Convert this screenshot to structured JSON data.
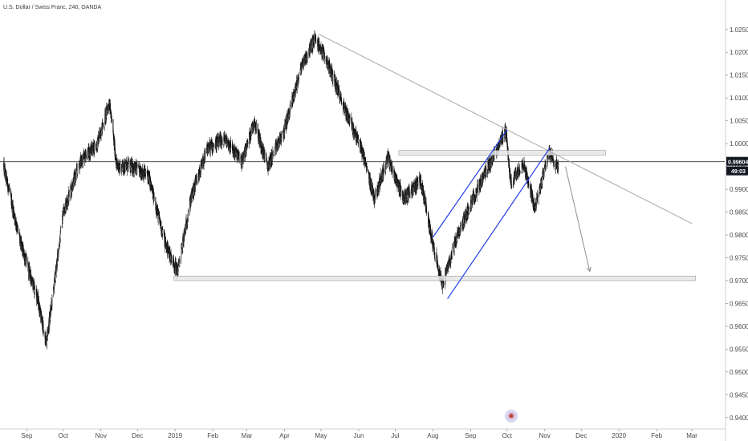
{
  "header": {
    "symbol_title": "U.S. Dollar / Swiss Franc, 240, OANDA"
  },
  "price_axis": {
    "labels": [
      "1.02500",
      "1.02000",
      "1.01500",
      "1.01000",
      "1.00500",
      "1.00000",
      "0.99500",
      "0.99000",
      "0.98500",
      "0.98000",
      "0.97500",
      "0.97000",
      "0.96500",
      "0.96000",
      "0.95500",
      "0.95000",
      "0.94500",
      "0.94000"
    ],
    "current_price": "0.99604",
    "countdown": "49:03",
    "current_tag_color": "#131722",
    "countdown_tag_color": "#131722"
  },
  "time_axis": {
    "labels": [
      "Sep",
      "Oct",
      "Nov",
      "Dec",
      "2019",
      "Feb",
      "Mar",
      "Apr",
      "May",
      "Jun",
      "Jul",
      "Aug",
      "Sep",
      "Oct",
      "Nov",
      "Dec",
      "2020",
      "Feb",
      "Mar"
    ]
  },
  "chart_data": {
    "type": "line",
    "series_style": "candlestick",
    "x": [
      "2018-08-13",
      "2018-08-27",
      "2018-09-10",
      "2018-09-17",
      "2018-09-24",
      "2018-10-01",
      "2018-10-15",
      "2018-10-29",
      "2018-11-08",
      "2018-11-14",
      "2018-11-26",
      "2018-12-10",
      "2018-12-24",
      "2019-01-03",
      "2019-01-14",
      "2019-01-28",
      "2019-02-11",
      "2019-02-25",
      "2019-03-07",
      "2019-03-18",
      "2019-04-01",
      "2019-04-15",
      "2019-04-26",
      "2019-05-06",
      "2019-05-20",
      "2019-06-03",
      "2019-06-14",
      "2019-06-25",
      "2019-07-08",
      "2019-07-22",
      "2019-08-01",
      "2019-08-09",
      "2019-08-20",
      "2019-09-03",
      "2019-09-16",
      "2019-09-30",
      "2019-10-04",
      "2019-10-14",
      "2019-10-24",
      "2019-11-04",
      "2019-11-12"
    ],
    "y": [
      0.995,
      0.978,
      0.966,
      0.956,
      0.97,
      0.985,
      0.996,
      1.0,
      1.009,
      0.995,
      0.995,
      0.993,
      0.978,
      0.972,
      0.988,
      0.999,
      1.001,
      0.996,
      1.005,
      0.995,
      1.003,
      1.017,
      1.023,
      1.018,
      1.008,
      0.999,
      0.988,
      0.997,
      0.988,
      0.992,
      0.978,
      0.969,
      0.979,
      0.988,
      0.995,
      1.003,
      0.991,
      0.996,
      0.986,
      0.998,
      0.995
    ],
    "ylim": [
      0.9375,
      1.029
    ],
    "xlim": [
      "2018-08-10",
      "2020-03-28"
    ],
    "grid": false,
    "annotations": {
      "trendline": {
        "from": {
          "x": "2019-04-29",
          "y": 1.024
        },
        "to": {
          "x": "2020-03-01",
          "y": 0.9825
        },
        "color": "#a8a8a8"
      },
      "channel_lower": {
        "from": {
          "x": "2019-08-13",
          "y": 0.966
        },
        "to": {
          "x": "2019-11-05",
          "y": 0.999
        },
        "color": "#1e3ee8"
      },
      "channel_upper": {
        "from": {
          "x": "2019-08-01",
          "y": 0.9795
        },
        "to": {
          "x": "2019-10-01",
          "y": 1.003
        },
        "color": "#1e3ee8"
      },
      "resistance_zone": {
        "x_from": "2019-07-04",
        "x_to": "2019-12-21",
        "y_low": 0.9975,
        "y_high": 0.9985,
        "color": "#d3d3d3"
      },
      "support_zone": {
        "x_from": "2018-12-31",
        "x_to": "2020-03-04",
        "y_low": 0.97,
        "y_high": 0.971,
        "color": "#d3d3d3"
      },
      "projection_arrow": {
        "from": {
          "x": "2019-11-18",
          "y": 0.995
        },
        "to": {
          "x": "2019-12-08",
          "y": 0.972
        },
        "color": "#8f8f8f"
      },
      "current_price_line": {
        "y": 0.99604,
        "color": "#333333"
      }
    }
  }
}
